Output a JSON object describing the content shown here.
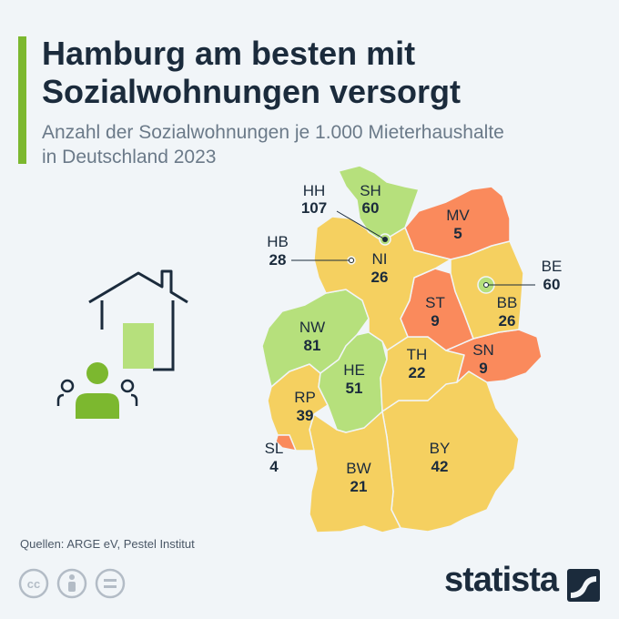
{
  "header": {
    "title_line1": "Hamburg am besten mit",
    "title_line2": "Sozialwohnungen versorgt",
    "subtitle_line1": "Anzahl der Sozialwohnungen je 1.000 Mieterhaushalte",
    "subtitle_line2": "in Deutschland 2023"
  },
  "colors": {
    "accent": "#7cb82f",
    "green_high": "#b6e07c",
    "yellow_mid": "#f5d060",
    "orange_low": "#fa8a5c",
    "text_dark": "#1b2b3c",
    "icon_green": "#7cb82f"
  },
  "states": [
    {
      "code": "SH",
      "value": "60",
      "category": "high"
    },
    {
      "code": "HH",
      "value": "107",
      "category": "high"
    },
    {
      "code": "MV",
      "value": "5",
      "category": "low"
    },
    {
      "code": "HB",
      "value": "28",
      "category": "mid"
    },
    {
      "code": "NI",
      "value": "26",
      "category": "mid"
    },
    {
      "code": "BE",
      "value": "60",
      "category": "high"
    },
    {
      "code": "ST",
      "value": "9",
      "category": "low"
    },
    {
      "code": "BB",
      "value": "26",
      "category": "mid"
    },
    {
      "code": "NW",
      "value": "81",
      "category": "high"
    },
    {
      "code": "SN",
      "value": "9",
      "category": "low"
    },
    {
      "code": "HE",
      "value": "51",
      "category": "high"
    },
    {
      "code": "TH",
      "value": "22",
      "category": "mid"
    },
    {
      "code": "RP",
      "value": "39",
      "category": "mid"
    },
    {
      "code": "SL",
      "value": "4",
      "category": "low"
    },
    {
      "code": "BY",
      "value": "42",
      "category": "mid"
    },
    {
      "code": "BW",
      "value": "21",
      "category": "mid"
    }
  ],
  "footer": {
    "source": "Quellen: ARGE eV, Pestel Institut",
    "brand": "statista"
  },
  "icons": [
    "house-with-people-icon",
    "cc-icon",
    "by-icon",
    "nd-icon",
    "statista-logo-icon"
  ]
}
